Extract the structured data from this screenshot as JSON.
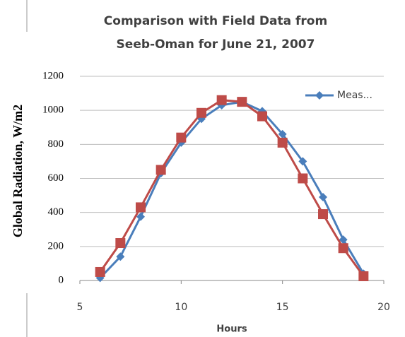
{
  "chart_data": {
    "type": "line",
    "title": [
      "Comparison with Field Data from",
      "Seeb-Oman for  June 21, 2007"
    ],
    "x_label": "Hours",
    "y_label": "Global Radiation, W/m2",
    "x": [
      6,
      7,
      8,
      9,
      10,
      11,
      12,
      13,
      14,
      15,
      16,
      17,
      18,
      19
    ],
    "series": [
      {
        "name": "Meas...",
        "color": "#4a7ebb",
        "marker": "diamond",
        "values": [
          15,
          140,
          375,
          630,
          810,
          950,
          1030,
          1050,
          995,
          860,
          700,
          490,
          240,
          40
        ]
      },
      {
        "color": "#be4b48",
        "marker": "square",
        "values": [
          50,
          220,
          430,
          650,
          840,
          985,
          1060,
          1050,
          965,
          810,
          600,
          390,
          190,
          25
        ]
      }
    ],
    "xlim": [
      5,
      20
    ],
    "xticks": [
      5,
      10,
      15,
      20
    ],
    "ylim": [
      0,
      1200
    ],
    "yticks": [
      0,
      200,
      400,
      600,
      800,
      1000,
      1200
    ],
    "grid": true,
    "legend": "upper right"
  }
}
